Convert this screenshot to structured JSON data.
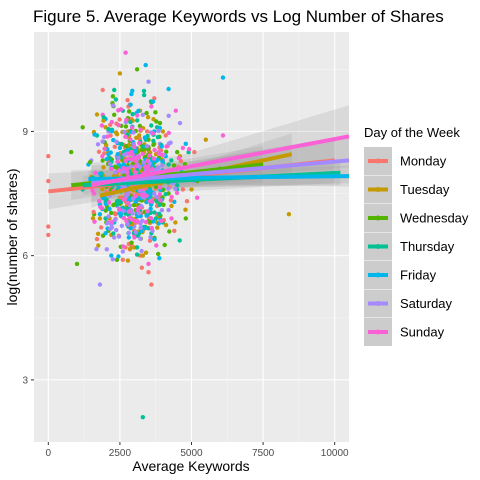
{
  "chart_data": {
    "type": "scatter",
    "title": "Figure 5. Average Keywords vs Log Number of Shares",
    "xlabel": "Average Keywords",
    "ylabel": "log(number of shares)",
    "xlim": [
      -500,
      10500
    ],
    "ylim": [
      1.5,
      11.4
    ],
    "xticks": [
      0,
      2500,
      5000,
      7500,
      10000
    ],
    "xtick_labels": [
      "0",
      "2500",
      "5000",
      "7500",
      "10000"
    ],
    "yticks": [
      3,
      6,
      9
    ],
    "ytick_labels": [
      "3",
      "6",
      "9"
    ],
    "grid": true,
    "legend": {
      "title": "Day of the Week",
      "position": "right"
    },
    "series": [
      {
        "name": "Monday",
        "color": "#F8766D",
        "trend": {
          "x0": 0,
          "y0": 7.55,
          "x1": 10000,
          "y1": 8.3,
          "band_lo": 0.3,
          "band_hi": 0.55
        },
        "points": [
          [
            0,
            8.4
          ],
          [
            0,
            6.7
          ],
          [
            0,
            6.5
          ],
          [
            0,
            7.8
          ],
          [
            1700,
            6.4
          ],
          [
            1900,
            10.0
          ],
          [
            2200,
            7.6
          ],
          [
            2500,
            8.7
          ],
          [
            2700,
            6.2
          ],
          [
            2900,
            9.3
          ],
          [
            3100,
            7.0
          ],
          [
            3300,
            8.1
          ],
          [
            3500,
            5.6
          ],
          [
            3700,
            9.8
          ],
          [
            3900,
            7.4
          ],
          [
            4100,
            8.9
          ],
          [
            4400,
            6.6
          ],
          [
            2600,
            5.9
          ],
          [
            3200,
            6.0
          ],
          [
            3800,
            7.2
          ],
          [
            2100,
            8.3
          ],
          [
            4700,
            7.6
          ],
          [
            5100,
            8.5
          ],
          [
            3450,
            9.0
          ],
          [
            2350,
            7.0
          ],
          [
            3600,
            5.3
          ],
          [
            3000,
            6.6
          ],
          [
            2800,
            9.6
          ]
        ]
      },
      {
        "name": "Tuesday",
        "color": "#C49A00",
        "trend": {
          "x0": 1800,
          "y0": 7.45,
          "x1": 8500,
          "y1": 8.45,
          "band_lo": 0.2,
          "band_hi": 0.5
        },
        "points": [
          [
            1500,
            7.9
          ],
          [
            1800,
            6.9
          ],
          [
            2000,
            9.1
          ],
          [
            2200,
            6.5
          ],
          [
            2400,
            8.0
          ],
          [
            2600,
            7.4
          ],
          [
            2800,
            8.6
          ],
          [
            3000,
            6.2
          ],
          [
            3200,
            9.5
          ],
          [
            3400,
            7.7
          ],
          [
            3600,
            8.2
          ],
          [
            3800,
            6.8
          ],
          [
            4000,
            9.0
          ],
          [
            4300,
            7.2
          ],
          [
            4600,
            8.4
          ],
          [
            5000,
            7.6
          ],
          [
            5500,
            8.8
          ],
          [
            8400,
            7.0
          ],
          [
            2500,
            10.4
          ],
          [
            3300,
            6.0
          ],
          [
            2900,
            7.9
          ],
          [
            3700,
            8.7
          ]
        ]
      },
      {
        "name": "Wednesday",
        "color": "#53B400",
        "trend": {
          "x0": 800,
          "y0": 7.7,
          "x1": 7500,
          "y1": 8.2,
          "band_lo": 0.25,
          "band_hi": 0.45
        },
        "points": [
          [
            800,
            8.5
          ],
          [
            1000,
            5.8
          ],
          [
            1200,
            9.1
          ],
          [
            1600,
            7.0
          ],
          [
            1900,
            8.3
          ],
          [
            2100,
            6.6
          ],
          [
            2300,
            9.4
          ],
          [
            2500,
            7.4
          ],
          [
            2700,
            8.1
          ],
          [
            2900,
            6.9
          ],
          [
            3100,
            10.5
          ],
          [
            3300,
            7.8
          ],
          [
            3500,
            8.8
          ],
          [
            3700,
            6.4
          ],
          [
            3900,
            9.2
          ],
          [
            4200,
            7.5
          ],
          [
            4500,
            8.5
          ],
          [
            4800,
            6.9
          ],
          [
            5200,
            7.8
          ],
          [
            6000,
            8.1
          ],
          [
            2400,
            5.9
          ],
          [
            3600,
            9.7
          ],
          [
            3050,
            7.1
          ]
        ]
      },
      {
        "name": "Thursday",
        "color": "#00C094",
        "trend": {
          "x0": 1200,
          "y0": 7.7,
          "x1": 10200,
          "y1": 8.0,
          "band_lo": 0.15,
          "band_hi": 0.3
        },
        "points": [
          [
            1200,
            7.6
          ],
          [
            1700,
            8.9
          ],
          [
            2000,
            6.9
          ],
          [
            2200,
            8.1
          ],
          [
            2400,
            7.3
          ],
          [
            2600,
            9.5
          ],
          [
            2800,
            6.7
          ],
          [
            3000,
            8.4
          ],
          [
            3200,
            7.1
          ],
          [
            3300,
            2.1
          ],
          [
            3400,
            8.8
          ],
          [
            3600,
            7.5
          ],
          [
            3800,
            9.1
          ],
          [
            4000,
            6.8
          ],
          [
            4200,
            8.2
          ],
          [
            4500,
            7.7
          ],
          [
            4900,
            8.5
          ],
          [
            5600,
            7.9
          ],
          [
            2300,
            10.0
          ],
          [
            3100,
            6.2
          ]
        ]
      },
      {
        "name": "Friday",
        "color": "#00B6EB",
        "trend": {
          "x0": 1400,
          "y0": 7.85,
          "x1": 10500,
          "y1": 7.92,
          "band_lo": 0.15,
          "band_hi": 0.25
        },
        "points": [
          [
            1400,
            8.2
          ],
          [
            1800,
            7.0
          ],
          [
            2000,
            9.3
          ],
          [
            2300,
            6.8
          ],
          [
            2500,
            8.6
          ],
          [
            2700,
            7.4
          ],
          [
            2900,
            9.9
          ],
          [
            3100,
            6.5
          ],
          [
            3300,
            8.1
          ],
          [
            3500,
            7.7
          ],
          [
            3700,
            9.0
          ],
          [
            3900,
            6.9
          ],
          [
            4100,
            8.4
          ],
          [
            4400,
            7.3
          ],
          [
            4800,
            8.7
          ],
          [
            5300,
            7.9
          ],
          [
            6100,
            10.3
          ],
          [
            2200,
            6.0
          ],
          [
            3400,
            10.6
          ],
          [
            2850,
            7.8
          ]
        ]
      },
      {
        "name": "Saturday",
        "color": "#A58AFF",
        "trend": {
          "x0": 1500,
          "y0": 7.75,
          "x1": 10500,
          "y1": 8.3,
          "band_lo": 0.3,
          "band_hi": 0.55
        },
        "points": [
          [
            1500,
            8.3
          ],
          [
            1800,
            5.3
          ],
          [
            2100,
            9.0
          ],
          [
            2400,
            7.2
          ],
          [
            2700,
            8.5
          ],
          [
            3000,
            6.7
          ],
          [
            3300,
            9.4
          ],
          [
            3600,
            7.9
          ],
          [
            3900,
            8.7
          ],
          [
            4200,
            7.1
          ],
          [
            4600,
            9.2
          ],
          [
            5100,
            8.0
          ],
          [
            2600,
            6.1
          ],
          [
            3500,
            10.2
          ]
        ]
      },
      {
        "name": "Sunday",
        "color": "#FB61D7",
        "trend": {
          "x0": 1500,
          "y0": 7.7,
          "x1": 10500,
          "y1": 8.88,
          "band_lo": 0.3,
          "band_hi": 0.75
        },
        "points": [
          [
            1600,
            7.5
          ],
          [
            1900,
            9.4
          ],
          [
            2100,
            6.8
          ],
          [
            2400,
            8.4
          ],
          [
            2600,
            7.1
          ],
          [
            2800,
            9.0
          ],
          [
            3000,
            6.5
          ],
          [
            3200,
            8.7
          ],
          [
            3400,
            7.8
          ],
          [
            3600,
            9.6
          ],
          [
            3800,
            7.0
          ],
          [
            4000,
            8.3
          ],
          [
            4300,
            6.9
          ],
          [
            4700,
            8.6
          ],
          [
            5200,
            7.4
          ],
          [
            6100,
            8.9
          ],
          [
            2700,
            10.9
          ],
          [
            3500,
            5.8
          ],
          [
            2950,
            7.6
          ],
          [
            4450,
            9.5
          ]
        ]
      }
    ]
  }
}
